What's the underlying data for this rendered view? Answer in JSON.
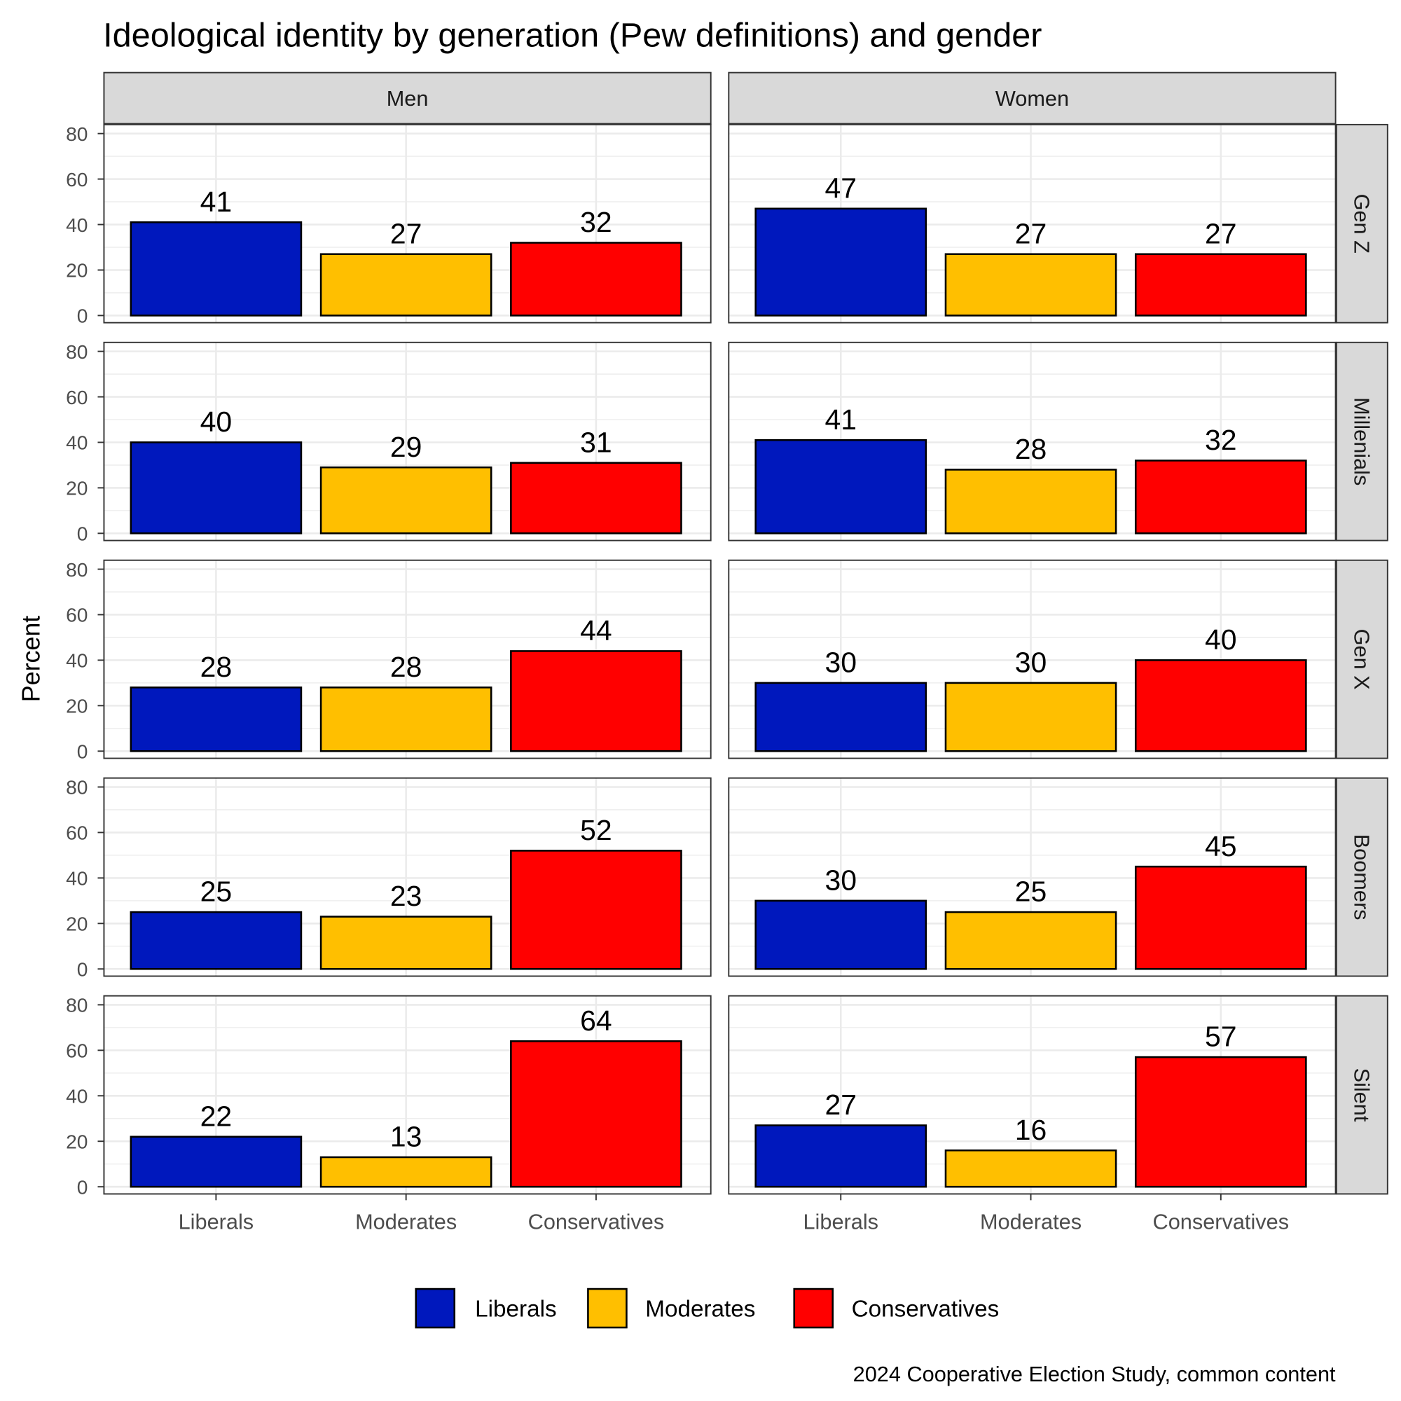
{
  "chart_data": {
    "type": "bar",
    "title": "Ideological identity by generation (Pew definitions) and gender",
    "ylabel": "Percent",
    "xlabel": "",
    "caption": "2024 Cooperative Election Study, common content",
    "ylim": [
      0,
      80
    ],
    "yticks": [
      "0",
      "20",
      "40",
      "60",
      "80"
    ],
    "grid": true,
    "legend_position": "bottom",
    "categories": [
      "Liberals",
      "Moderates",
      "Conservatives"
    ],
    "colors": {
      "Liberals": "#0018BD",
      "Moderates": "#FFBF00",
      "Conservatives": "#FF0000"
    },
    "columns": [
      "Men",
      "Women"
    ],
    "rows": [
      "Gen Z",
      "Millenials",
      "Gen X",
      "Boomers",
      "Silent"
    ],
    "values": {
      "Men": {
        "Gen Z": [
          41,
          27,
          32
        ],
        "Millenials": [
          40,
          29,
          31
        ],
        "Gen X": [
          28,
          28,
          44
        ],
        "Boomers": [
          25,
          23,
          52
        ],
        "Silent": [
          22,
          13,
          64
        ]
      },
      "Women": {
        "Gen Z": [
          47,
          27,
          27
        ],
        "Millenials": [
          41,
          28,
          32
        ],
        "Gen X": [
          30,
          30,
          40
        ],
        "Boomers": [
          30,
          25,
          45
        ],
        "Silent": [
          27,
          16,
          57
        ]
      }
    },
    "legend": [
      "Liberals",
      "Moderates",
      "Conservatives"
    ]
  }
}
